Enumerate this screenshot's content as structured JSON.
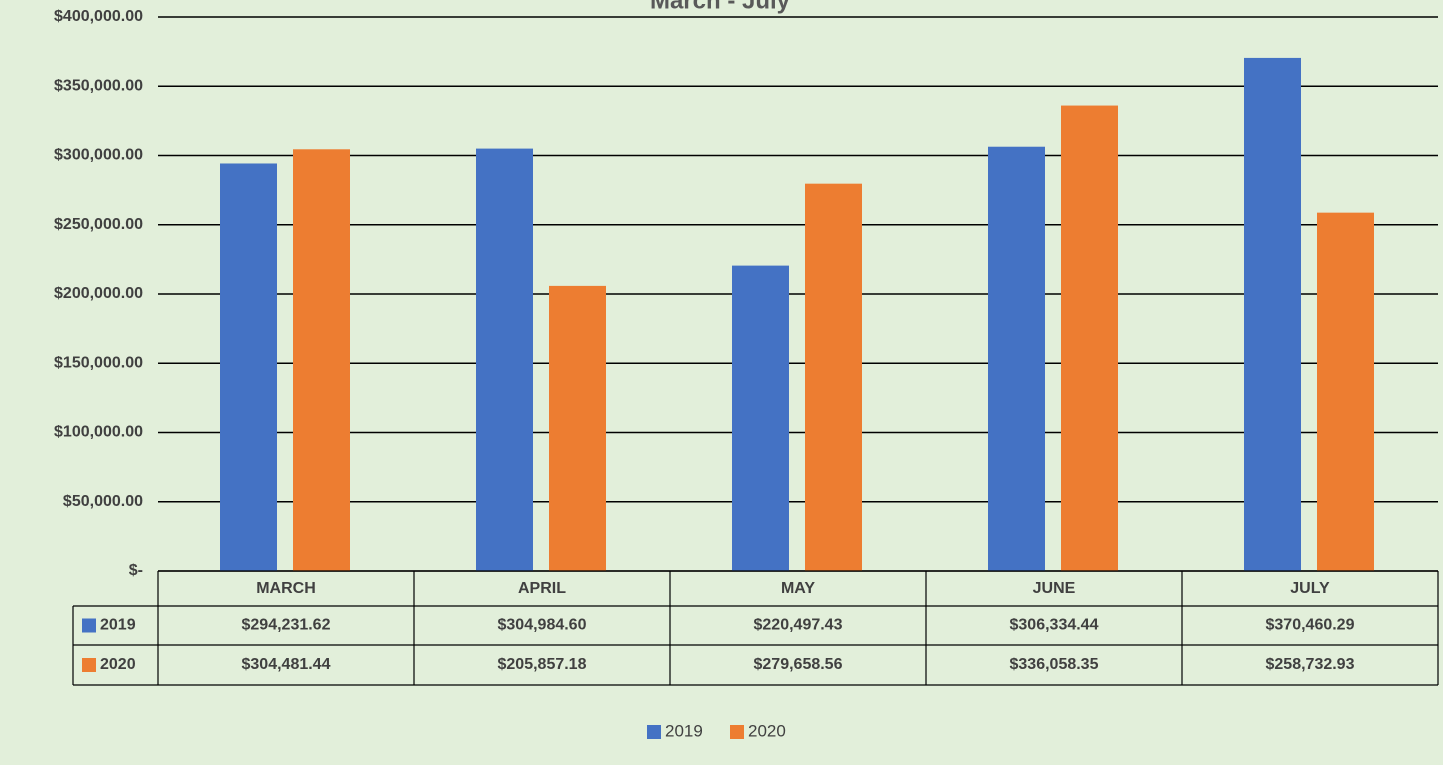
{
  "chart_data": {
    "type": "bar",
    "title": "March - July",
    "categories": [
      "MARCH",
      "APRIL",
      "MAY",
      "JUNE",
      "JULY"
    ],
    "series": [
      {
        "name": "2019",
        "color": "#4472c4",
        "values": [
          294231.62,
          304984.6,
          220497.43,
          306334.44,
          370460.29
        ],
        "value_labels": [
          "$294,231.62",
          "$304,984.60",
          "$220,497.43",
          "$306,334.44",
          "$370,460.29"
        ]
      },
      {
        "name": "2020",
        "color": "#ed7d31",
        "values": [
          304481.44,
          205857.18,
          279658.56,
          336058.35,
          258732.93
        ],
        "value_labels": [
          "$304,481.44",
          "$205,857.18",
          "$279,658.56",
          "$336,058.35",
          "$258,732.93"
        ]
      }
    ],
    "ylim": [
      0,
      400000
    ],
    "yticks": [
      {
        "value": 0,
        "label": "$-"
      },
      {
        "value": 50000,
        "label": "$50,000.00"
      },
      {
        "value": 100000,
        "label": "$100,000.00"
      },
      {
        "value": 150000,
        "label": "$150,000.00"
      },
      {
        "value": 200000,
        "label": "$200,000.00"
      },
      {
        "value": 250000,
        "label": "$250,000.00"
      },
      {
        "value": 300000,
        "label": "$300,000.00"
      },
      {
        "value": 350000,
        "label": "$350,000.00"
      },
      {
        "value": 400000,
        "label": "$400,000.00"
      }
    ],
    "grid": true,
    "legend": "bottom"
  }
}
